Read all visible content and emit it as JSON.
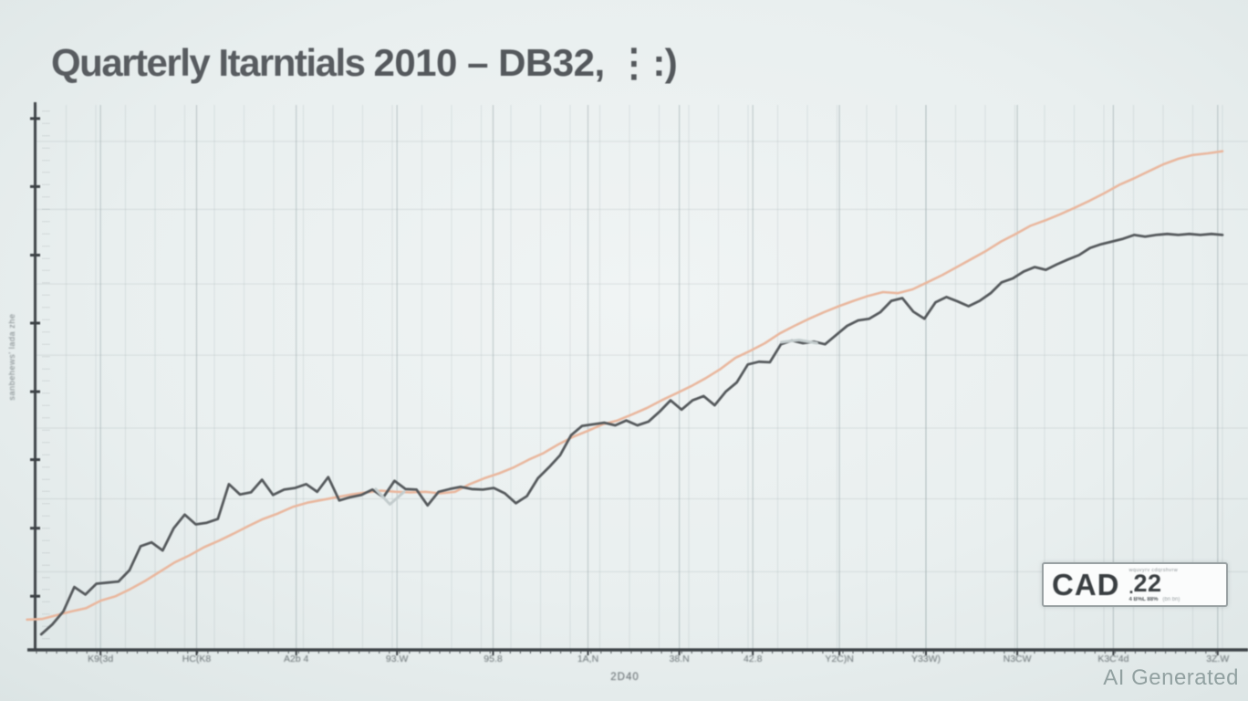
{
  "page": {
    "watermark": "AI Generated"
  },
  "title": {
    "part1": "Quarterly Itarntials",
    "part2": "2010 – DB32, ⋮:)"
  },
  "badge": {
    "currency": "CAD",
    "micro_top": "wquvyrv cdqrshvrw",
    "point": ".",
    "value": "22",
    "micro_bottom_left": "4 B%L 88%",
    "micro_bottom_right": "(bn bn)"
  },
  "chart_data": {
    "type": "line",
    "title": "Quarterly Itarntials 2010 – DB32, ⋮:)",
    "grid": true,
    "legend": "none",
    "x_axis": {
      "title": "2D40",
      "tick_labels": [
        "K9(3d",
        "HC(K8",
        "A2b 4",
        "93.W",
        "95.8",
        "1A,N",
        "38.N",
        "42.8",
        "Y2C)N",
        "Y33W)",
        "N3CW",
        "K3C'4d",
        "3Z.W"
      ],
      "tick_positions_percent": [
        5.4,
        13.5,
        21.9,
        30.4,
        38.5,
        46.5,
        54.2,
        60.4,
        67.7,
        75.0,
        82.7,
        90.8,
        99.6
      ],
      "minor_gridline_step_percent": 2.5,
      "range_percent": [
        0,
        100
      ]
    },
    "y_axis": {
      "title_rotated": "sanbehews' lada zhe",
      "ylim": [
        0,
        100
      ],
      "major_tick_values": [
        9.7,
        22.2,
        34.8,
        47.3,
        59.9,
        72.4,
        85.0,
        97.5
      ],
      "h_gridline_values": [
        14.2,
        27.6,
        40.6,
        54.0,
        67.1,
        80.8,
        93.3
      ],
      "micro_label_count": 44,
      "micro_label_glyph": "⋅⋅⋅⋅⋅"
    },
    "series": [
      {
        "name": "smooth-salmon-line",
        "color": "#e9b79e",
        "width": 2.6,
        "x_start_percent": -0.8,
        "x_end_percent": 100,
        "values": [
          5.4,
          5.5,
          6.2,
          6.9,
          7.5,
          8.9,
          9.7,
          11.0,
          12.5,
          14.2,
          15.9,
          17.2,
          18.7,
          19.9,
          21.2,
          22.6,
          23.9,
          24.9,
          26.1,
          26.9,
          27.4,
          27.9,
          28.4,
          28.8,
          29.1,
          28.9,
          28.8,
          28.9,
          28.6,
          28.9,
          30.3,
          31.4,
          32.3,
          33.4,
          34.8,
          36.0,
          37.6,
          39.0,
          40.1,
          41.3,
          42.0,
          43.1,
          44.3,
          45.7,
          47.0,
          48.3,
          49.8,
          51.5,
          53.5,
          54.8,
          56.2,
          58.0,
          59.4,
          60.7,
          61.9,
          63.0,
          64.0,
          64.9,
          65.6,
          65.4,
          66.1,
          67.4,
          68.7,
          70.2,
          71.7,
          73.2,
          74.9,
          76.3,
          77.8,
          78.8,
          79.9,
          81.1,
          82.4,
          83.8,
          85.3,
          86.5,
          87.8,
          89.1,
          90.1,
          90.8,
          91.1,
          91.5
        ]
      },
      {
        "name": "jagged-dark-line",
        "color": "#55595c",
        "width": 2.8,
        "x_start_percent": 0.4,
        "x_end_percent": 100,
        "values": [
          2.7,
          4.5,
          6.9,
          11.4,
          10.0,
          12.0,
          12.2,
          12.4,
          14.5,
          18.9,
          19.6,
          18.1,
          22.2,
          24.7,
          22.9,
          23.2,
          23.9,
          30.3,
          28.4,
          28.8,
          31.1,
          28.3,
          29.3,
          29.6,
          30.3,
          28.9,
          31.6,
          27.3,
          27.9,
          28.3,
          29.3,
          27.9,
          30.9,
          29.4,
          29.3,
          26.4,
          28.9,
          29.4,
          29.8,
          29.4,
          29.3,
          29.6,
          28.6,
          26.8,
          28.1,
          31.4,
          33.4,
          35.6,
          39.3,
          41.0,
          41.3,
          41.6,
          41.1,
          42.0,
          41.1,
          41.8,
          43.6,
          45.7,
          44.0,
          45.7,
          46.5,
          44.8,
          47.3,
          49.0,
          52.3,
          52.8,
          52.7,
          56.0,
          56.7,
          56.2,
          56.5,
          56.0,
          57.7,
          59.4,
          60.4,
          60.7,
          61.9,
          64.0,
          64.5,
          62.0,
          60.7,
          63.7,
          64.7,
          63.9,
          63.0,
          64.0,
          65.4,
          67.4,
          68.1,
          69.4,
          70.2,
          69.7,
          70.7,
          71.6,
          72.4,
          73.7,
          74.4,
          74.9,
          75.4,
          76.1,
          75.8,
          76.1,
          76.3,
          76.1,
          76.3,
          76.1,
          76.3,
          76.1
        ]
      }
    ],
    "ghost_segments": [
      {
        "color": "#c3cccd",
        "width": 3,
        "x_start": 28.6,
        "x_end": 31.0,
        "values": [
          29.4,
          26.6,
          28.9
        ]
      },
      {
        "color": "#c3cccd",
        "width": 3,
        "x_start": 62.8,
        "x_end": 65.8,
        "values": [
          56.4,
          56.8,
          56.2
        ]
      }
    ]
  }
}
